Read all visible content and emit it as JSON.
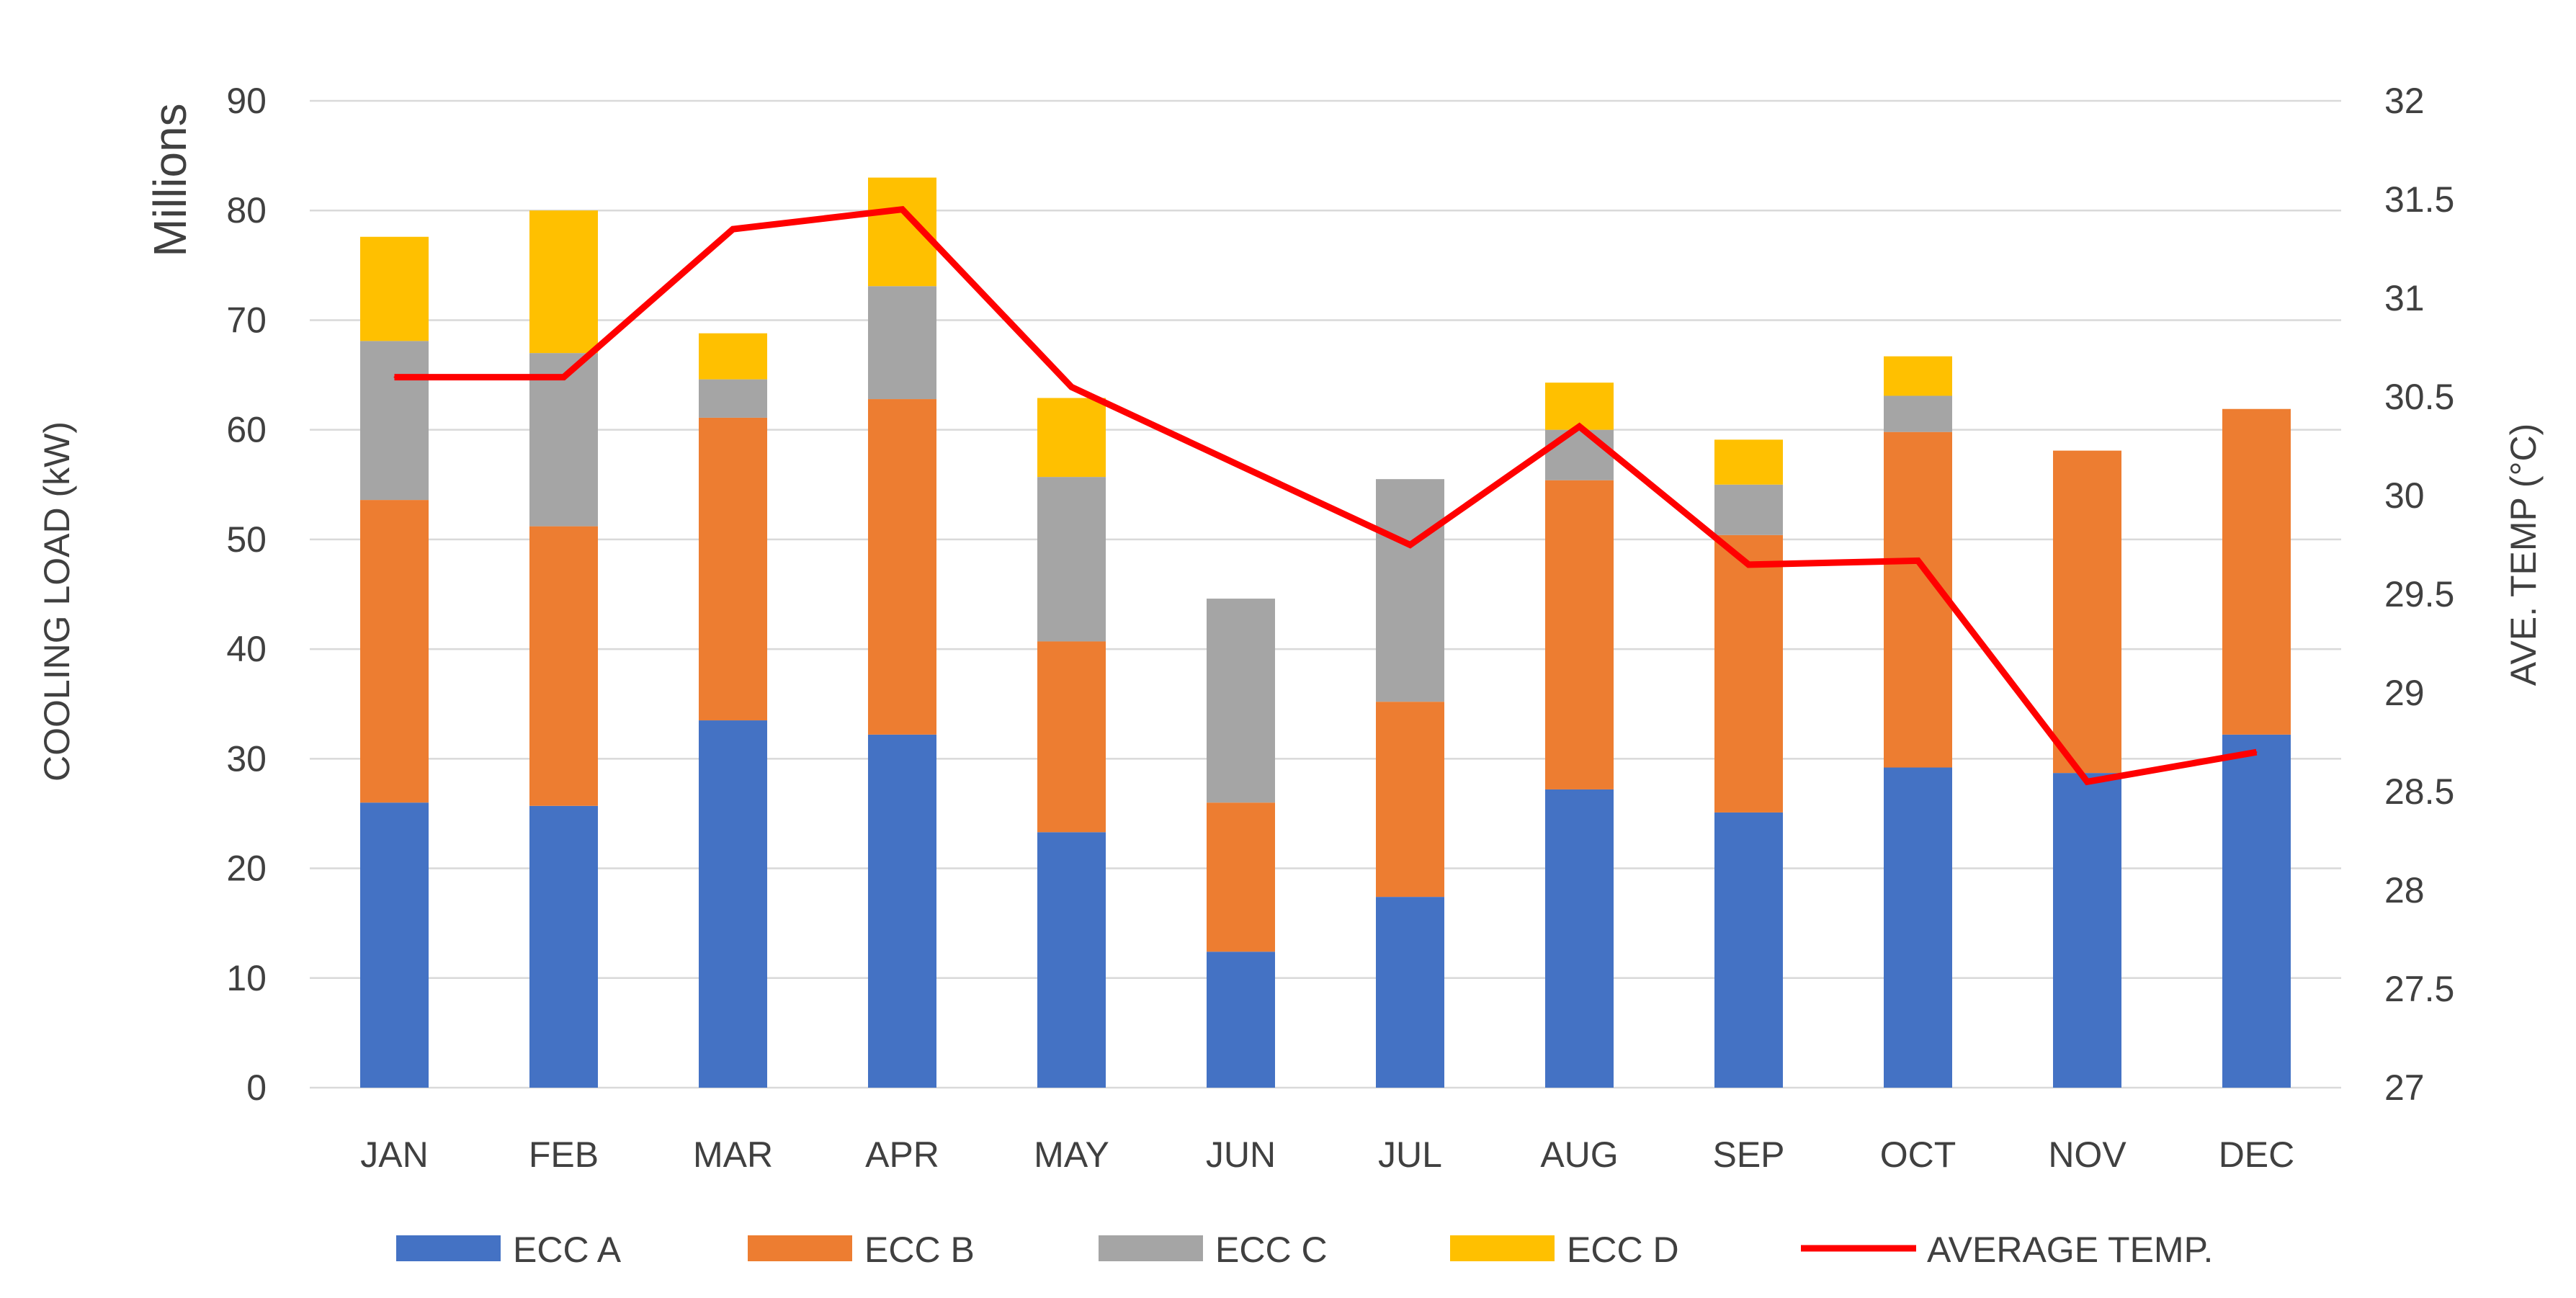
{
  "chart_data": {
    "type": "bar",
    "stacked": true,
    "categories": [
      "JAN",
      "FEB",
      "MAR",
      "APR",
      "MAY",
      "JUN",
      "JUL",
      "AUG",
      "SEP",
      "OCT",
      "NOV",
      "DEC"
    ],
    "series": [
      {
        "name": "ECC A",
        "color": "#4472c4",
        "values": [
          26,
          25.7,
          33.5,
          32.2,
          23.3,
          12.4,
          17.4,
          27.2,
          25.1,
          29.2,
          28.7,
          32.2
        ]
      },
      {
        "name": "ECC B",
        "color": "#ed7d31",
        "values": [
          27.6,
          25.5,
          27.6,
          30.6,
          17.4,
          13.6,
          17.8,
          28.2,
          25.3,
          30.6,
          29.4,
          29.7
        ]
      },
      {
        "name": "ECC C",
        "color": "#a5a5a5",
        "values": [
          14.5,
          15.8,
          3.5,
          10.3,
          15,
          18.6,
          20.3,
          4.6,
          4.6,
          3.3,
          0,
          0
        ]
      },
      {
        "name": "ECC D",
        "color": "#ffc000",
        "values": [
          9.5,
          13,
          4.2,
          9.9,
          7.2,
          0,
          0,
          4.3,
          4.1,
          3.6,
          0,
          0
        ]
      }
    ],
    "line_series": {
      "name": "AVERAGE TEMP.",
      "color": "#ff0000",
      "axis": "right",
      "values": [
        30.6,
        30.6,
        31.35,
        31.45,
        30.55,
        30.15,
        29.75,
        30.35,
        29.65,
        29.67,
        28.55,
        28.7
      ]
    },
    "ylabel": "COOLING LOAD (kW)",
    "ylabel_units": "Millions",
    "y2label": "AVE. TEMP (°C)",
    "ylim": [
      0,
      90
    ],
    "y2lim": [
      27,
      32
    ],
    "yticks": [
      "0",
      "10",
      "20",
      "30",
      "40",
      "50",
      "60",
      "70",
      "80",
      "90"
    ],
    "y2ticks": [
      "27",
      "27.5",
      "28",
      "28.5",
      "29",
      "29.5",
      "30",
      "30.5",
      "31",
      "31.5",
      "32"
    ],
    "grid": true,
    "legend_position": "bottom"
  }
}
